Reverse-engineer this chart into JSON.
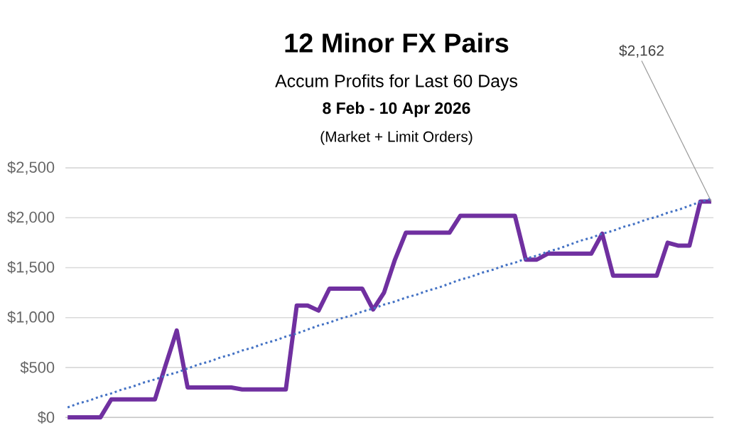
{
  "chart_data": {
    "type": "line",
    "title": "12 Minor FX Pairs",
    "subtitle": "Accum Profits for Last 60 Days",
    "annotations": [
      "8 Feb  - 10 Apr 2026",
      "(Market + Limit Orders)",
      "$2,162"
    ],
    "categories": [
      null,
      null,
      null,
      null,
      null,
      null,
      null,
      null,
      null,
      null,
      null,
      null,
      null,
      null,
      null,
      null,
      null,
      null,
      null,
      null,
      null,
      null,
      null,
      null,
      null,
      null,
      null,
      null,
      null,
      null,
      null,
      null,
      null,
      null,
      null,
      null,
      null,
      null,
      null,
      null,
      null,
      null,
      null,
      null,
      null,
      null,
      null,
      null,
      null,
      null,
      null,
      null,
      null,
      null,
      null,
      null,
      null,
      null,
      null,
      null
    ],
    "series": [
      {
        "color": "#7030a0",
        "line_style": "solid",
        "values": [
          0,
          0,
          0,
          0,
          180,
          180,
          180,
          180,
          180,
          530,
          870,
          300,
          300,
          300,
          300,
          300,
          280,
          280,
          280,
          280,
          280,
          1120,
          1120,
          1070,
          1290,
          1290,
          1290,
          1290,
          1080,
          1250,
          1580,
          1850,
          1850,
          1850,
          1850,
          1850,
          2020,
          2020,
          2020,
          2020,
          2020,
          2020,
          1580,
          1580,
          1640,
          1640,
          1640,
          1640,
          1640,
          1840,
          1420,
          1420,
          1420,
          1420,
          1420,
          1750,
          1720,
          1720,
          2162,
          2162
        ]
      },
      {
        "type": "line",
        "color": "#4472c4",
        "line_style": "dotted",
        "values": [
          100,
          140,
          170,
          210,
          240,
          280,
          310,
          350,
          380,
          420,
          450,
          490,
          530,
          560,
          600,
          630,
          670,
          700,
          740,
          770,
          810,
          840,
          880,
          920,
          950,
          990,
          1020,
          1060,
          1090,
          1130,
          1160,
          1200,
          1230,
          1270,
          1300,
          1340,
          1380,
          1410,
          1450,
          1480,
          1520,
          1550,
          1590,
          1620,
          1660,
          1690,
          1730,
          1770,
          1800,
          1840,
          1870,
          1910,
          1940,
          1980,
          2010,
          2050,
          2080,
          2120,
          2160,
          2190
        ]
      }
    ],
    "ylim": [
      0,
      2500
    ],
    "yticks": [
      {
        "value": 0,
        "label": "$0"
      },
      {
        "value": 500,
        "label": "$500"
      },
      {
        "value": 1000,
        "label": "$1,000"
      },
      {
        "value": 1500,
        "label": "$1,500"
      },
      {
        "value": 2000,
        "label": "$2,000"
      },
      {
        "value": 2500,
        "label": "$2,500"
      }
    ],
    "grid": "y"
  }
}
